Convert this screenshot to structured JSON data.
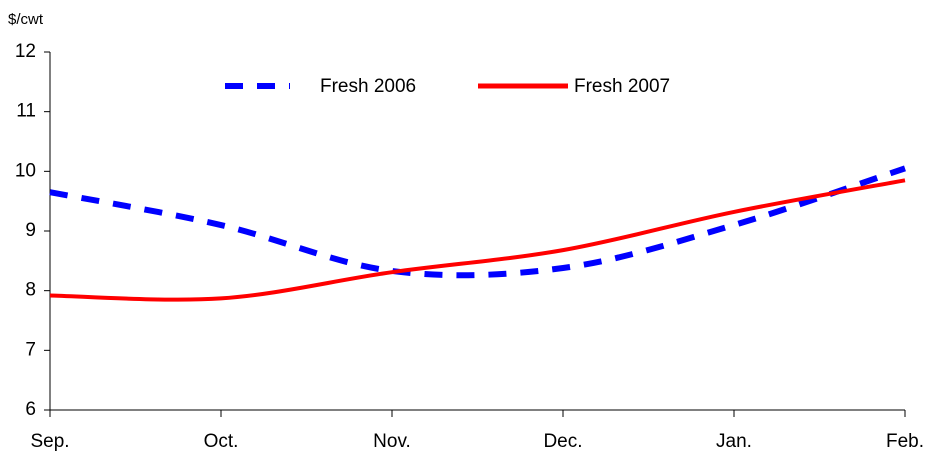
{
  "chart_data": {
    "type": "line",
    "y_axis_label": "$/cwt",
    "categories": [
      "Sep.",
      "Oct.",
      "Nov.",
      "Dec.",
      "Jan.",
      "Feb."
    ],
    "series": [
      {
        "name": "Fresh 2006",
        "color": "#0000ff",
        "dashed": true,
        "values": [
          9.65,
          9.1,
          8.33,
          8.38,
          9.1,
          10.05
        ]
      },
      {
        "name": "Fresh 2007",
        "color": "#ff0000",
        "dashed": false,
        "values": [
          7.92,
          7.87,
          8.31,
          8.68,
          9.32,
          9.85
        ]
      }
    ],
    "ylim": [
      6,
      12
    ],
    "yticks": [
      6,
      7,
      8,
      9,
      10,
      11,
      12
    ],
    "grid": false,
    "smooth": true,
    "legend": "top"
  }
}
